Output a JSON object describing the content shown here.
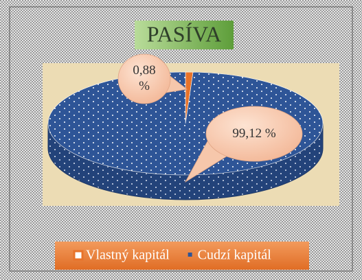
{
  "chart_data": {
    "type": "pie",
    "title": "PASÍVA",
    "categories": [
      "Vlastný kapitál",
      "Cudzí kapitál"
    ],
    "values": [
      0.88,
      99.12
    ],
    "value_labels": [
      "0,88 %",
      "99,12 %"
    ],
    "colors": [
      "#e8732a",
      "#2e5597"
    ],
    "legend": "bottom"
  }
}
